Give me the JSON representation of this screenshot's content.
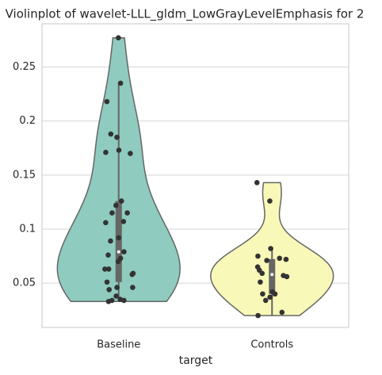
{
  "chart_data": {
    "type": "violin",
    "title": "Violinplot of wavelet-LLL_gldm_LowGrayLevelEmphasis for 2",
    "x_label": "target",
    "categories": [
      "Baseline",
      "Controls"
    ],
    "colors": [
      "#8fcbbf",
      "#f8f8b8"
    ],
    "values": [
      [
        0.277,
        0.235,
        0.218,
        0.188,
        0.185,
        0.173,
        0.171,
        0.17,
        0.126,
        0.122,
        0.115,
        0.115,
        0.107,
        0.106,
        0.092,
        0.089,
        0.079,
        0.076,
        0.073,
        0.07,
        0.063,
        0.063,
        0.058,
        0.059,
        0.051,
        0.046,
        0.046,
        0.044,
        0.038,
        0.035,
        0.034,
        0.034,
        0.033
      ],
      [
        0.143,
        0.126,
        0.082,
        0.075,
        0.073,
        0.071,
        0.072,
        0.062,
        0.065,
        0.059,
        0.057,
        0.056,
        0.051,
        0.042,
        0.04,
        0.04,
        0.037,
        0.034,
        0.023,
        0.02
      ]
    ],
    "ylim": [
      0.009,
      0.29
    ],
    "yticks": [
      0.05,
      0.1,
      0.15,
      0.2,
      0.25
    ],
    "grid": true
  }
}
